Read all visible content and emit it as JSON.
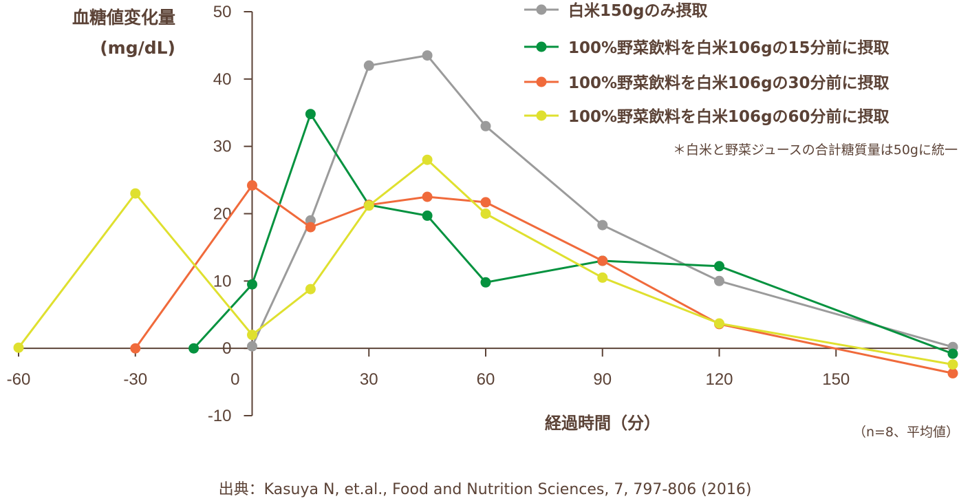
{
  "chart_data": {
    "type": "line",
    "ylabel_line1": "血糖値変化量",
    "ylabel_line2": "(mg/dL)",
    "xlabel": "経過時間（分）",
    "xlim": [
      -60,
      180
    ],
    "ylim": [
      -10,
      50
    ],
    "xticks": [
      -60,
      -30,
      0,
      30,
      60,
      90,
      120,
      150
    ],
    "xtick_labels": [
      "-60",
      "-30",
      "0",
      "30",
      "60",
      "90",
      "120",
      "150"
    ],
    "yticks": [
      50,
      40,
      30,
      20,
      10,
      0,
      -10
    ],
    "ytick_labels": [
      "50",
      "40",
      "30",
      "20",
      "10",
      "0",
      "-10"
    ],
    "grid": false,
    "legend_position": "top-right",
    "series": [
      {
        "name": "白米150gのみ摂取",
        "color": "#9b9b9b",
        "x": [
          0,
          15,
          30,
          45,
          60,
          90,
          120,
          180
        ],
        "y": [
          0.3,
          19,
          42,
          43.5,
          33,
          18.3,
          10,
          0.2
        ]
      },
      {
        "name": "100%野菜飲料を白米106gの15分前に摂取",
        "color": "#05923f",
        "x": [
          -15,
          0,
          15,
          30,
          45,
          60,
          90,
          120,
          180
        ],
        "y": [
          0,
          9.5,
          34.8,
          21.3,
          19.7,
          9.8,
          13,
          12.2,
          -0.8
        ]
      },
      {
        "name": "100%野菜飲料を白米106gの30分前に摂取",
        "color": "#f06a3b",
        "x": [
          -30,
          0,
          15,
          30,
          45,
          60,
          90,
          120,
          180
        ],
        "y": [
          0,
          24.2,
          18,
          21.3,
          22.5,
          21.7,
          13,
          3.6,
          -3.7
        ]
      },
      {
        "name": "100%野菜飲料を白米106gの60分前に摂取",
        "color": "#dfe02f",
        "x": [
          -60,
          -30,
          0,
          15,
          30,
          45,
          60,
          90,
          120,
          180
        ],
        "y": [
          0.1,
          23,
          2,
          8.8,
          21.2,
          28,
          20,
          10.5,
          3.7,
          -2.4
        ]
      }
    ],
    "annotation": "＊白米と野菜ジュースの合計糖質量は50gに統一",
    "sample_note": "（n=8、平均値）"
  },
  "source": "出典：Kasuya N, et.al., Food and Nutrition Sciences, 7, 797-806 (2016)"
}
